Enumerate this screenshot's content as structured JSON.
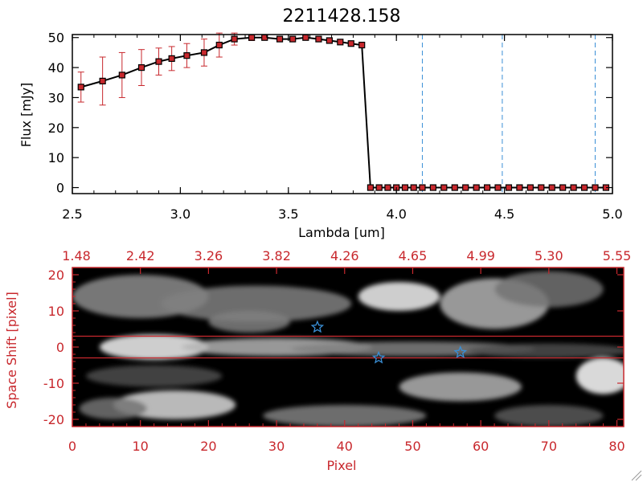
{
  "chart_data": [
    {
      "type": "line",
      "title": "2211428.158",
      "xlabel": "Lambda [um]",
      "ylabel": "Flux [mJy]",
      "xlim": [
        2.5,
        5.0
      ],
      "ylim": [
        -2,
        51
      ],
      "xticks": [
        "2.5",
        "3.0",
        "3.5",
        "4.0",
        "4.5",
        "5.0"
      ],
      "xtick_values": [
        2.5,
        3.0,
        3.5,
        4.0,
        4.5,
        5.0
      ],
      "yticks": [
        "0",
        "10",
        "20",
        "30",
        "40",
        "50"
      ],
      "ytick_values": [
        0,
        10,
        20,
        30,
        40,
        50
      ],
      "series": [
        {
          "name": "flux",
          "color": "#000000",
          "marker_color": "#c8282d",
          "x": [
            2.54,
            2.64,
            2.73,
            2.82,
            2.9,
            2.96,
            3.03,
            3.11,
            3.18,
            3.25,
            3.33,
            3.39,
            3.46,
            3.52,
            3.58,
            3.64,
            3.69,
            3.74,
            3.79,
            3.84,
            3.88,
            3.92,
            3.96,
            4.0,
            4.04,
            4.08,
            4.12,
            4.17,
            4.22,
            4.27,
            4.32,
            4.37,
            4.42,
            4.47,
            4.52,
            4.57,
            4.62,
            4.67,
            4.72,
            4.77,
            4.82,
            4.87,
            4.92,
            4.97
          ],
          "y": [
            33.5,
            35.5,
            37.5,
            40.0,
            42.0,
            43.0,
            44.0,
            45.0,
            47.5,
            49.5,
            50.0,
            50.0,
            49.5,
            49.5,
            50.0,
            49.5,
            49.0,
            48.5,
            48.0,
            47.5,
            0,
            0,
            0,
            0,
            0,
            0,
            0,
            0,
            0,
            0,
            0,
            0,
            0,
            0,
            0,
            0,
            0,
            0,
            0,
            0,
            0,
            0,
            0,
            0
          ],
          "yerr": [
            5,
            8,
            7.5,
            6,
            4.5,
            4,
            4,
            4.5,
            4,
            2,
            1,
            0.5,
            0.5,
            0.5,
            0.5,
            0,
            0,
            0,
            0,
            0,
            0,
            0,
            0,
            0,
            0,
            0,
            0,
            0,
            0,
            0,
            0,
            0,
            0,
            0,
            0,
            0,
            0,
            0,
            0,
            0,
            0,
            0,
            0,
            0
          ]
        }
      ],
      "vlines": [
        4.12,
        4.49,
        4.92
      ],
      "vline_color": "#3a8fd6"
    },
    {
      "type": "heatmap",
      "xlabel": "Pixel",
      "ylabel": "Space Shift [pixel]",
      "xlim": [
        0,
        81
      ],
      "ylim": [
        -22,
        22
      ],
      "xticks": [
        "0",
        "10",
        "20",
        "30",
        "40",
        "50",
        "60",
        "70",
        "80"
      ],
      "xtick_values": [
        0,
        10,
        20,
        30,
        40,
        50,
        60,
        70,
        80
      ],
      "yticks": [
        "20",
        "10",
        "0",
        "-10",
        "-20"
      ],
      "ytick_values": [
        20,
        10,
        0,
        -10,
        -20
      ],
      "top_xticks": [
        "1.48",
        "2.42",
        "3.26",
        "3.82",
        "4.26",
        "4.65",
        "4.99",
        "5.30",
        "5.55"
      ],
      "top_xtick_values": [
        0,
        10,
        20,
        30,
        40,
        50,
        60,
        70,
        80
      ],
      "hlines": [
        3,
        -3
      ],
      "stars": [
        {
          "x": 36,
          "y": 5.5
        },
        {
          "x": 45,
          "y": -3
        },
        {
          "x": 57,
          "y": -1.5
        }
      ],
      "blobs": [
        {
          "x": 12,
          "y": 0,
          "sx": 8,
          "sy": 3.5,
          "v": 0.95
        },
        {
          "x": 30,
          "y": 0,
          "sx": 14,
          "sy": 2.5,
          "v": 0.7
        },
        {
          "x": 50,
          "y": -0.5,
          "sx": 18,
          "sy": 2,
          "v": 0.5
        },
        {
          "x": 70,
          "y": -1,
          "sx": 12,
          "sy": 2,
          "v": 0.3
        },
        {
          "x": 10,
          "y": 14,
          "sx": 10,
          "sy": 6,
          "v": 0.55
        },
        {
          "x": 27,
          "y": 12,
          "sx": 14,
          "sy": 5,
          "v": 0.5
        },
        {
          "x": 48,
          "y": 14,
          "sx": 6,
          "sy": 4,
          "v": 0.95
        },
        {
          "x": 62,
          "y": 12,
          "sx": 8,
          "sy": 7,
          "v": 0.7
        },
        {
          "x": 70,
          "y": 16,
          "sx": 8,
          "sy": 5,
          "v": 0.45
        },
        {
          "x": 26,
          "y": 7,
          "sx": 6,
          "sy": 3,
          "v": 0.5
        },
        {
          "x": 15,
          "y": -16,
          "sx": 9,
          "sy": 4,
          "v": 0.85
        },
        {
          "x": 6,
          "y": -17,
          "sx": 5,
          "sy": 3,
          "v": 0.45
        },
        {
          "x": 40,
          "y": -19,
          "sx": 12,
          "sy": 3,
          "v": 0.5
        },
        {
          "x": 57,
          "y": -11,
          "sx": 9,
          "sy": 4,
          "v": 0.7
        },
        {
          "x": 78,
          "y": -8,
          "sx": 4,
          "sy": 5,
          "v": 1.0
        },
        {
          "x": 70,
          "y": -19,
          "sx": 8,
          "sy": 3,
          "v": 0.35
        },
        {
          "x": 12,
          "y": -8,
          "sx": 10,
          "sy": 3,
          "v": 0.3
        }
      ]
    }
  ]
}
